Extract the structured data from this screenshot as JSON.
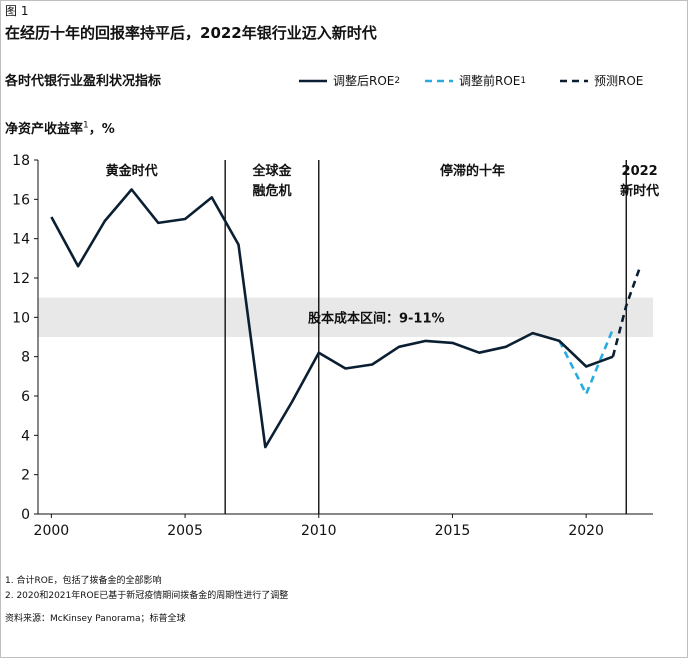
{
  "figure_label": "图 1",
  "title": "在经历十年的回报率持平后，2022年银行业迈入新时代",
  "subtitle": "各时代银行业盈利状况指标",
  "unit_label": "净资产收益率",
  "unit_label_sup": "1",
  "unit_label_suffix": "，%",
  "footnotes": [
    "1. 合计ROE，包括了拨备金的全部影响",
    "2. 2020和2021年ROE已基于新冠疫情期间拨备金的周期性进行了调整"
  ],
  "source": "资料来源：McKinsey Panorama；标普全球",
  "colors": {
    "adjusted": "#0b1f33",
    "pre_adjusted": "#29abe2",
    "forecast": "#0b1f33",
    "band": "#e8e8e8",
    "axis": "#111111"
  },
  "chart_data": {
    "type": "line",
    "xlim": [
      1999.5,
      2022.5
    ],
    "ylim": [
      0,
      18
    ],
    "x_ticks": [
      2000,
      2005,
      2010,
      2015,
      2020
    ],
    "y_ticks": [
      0,
      2,
      4,
      6,
      8,
      10,
      12,
      14,
      16,
      18
    ],
    "legend_position": "top-right",
    "series": [
      {
        "name": "调整后ROE",
        "name_sup": "2",
        "style": "solid",
        "x": [
          2000,
          2001,
          2002,
          2003,
          2004,
          2005,
          2006,
          2007,
          2008,
          2009,
          2010,
          2011,
          2012,
          2013,
          2014,
          2015,
          2016,
          2017,
          2018,
          2019,
          2020,
          2021
        ],
        "y": [
          15.1,
          12.6,
          14.9,
          16.5,
          14.8,
          15.0,
          16.1,
          13.7,
          3.4,
          5.7,
          8.2,
          7.4,
          7.6,
          8.5,
          8.8,
          8.7,
          8.2,
          8.5,
          9.2,
          8.8,
          7.5,
          8.0
        ]
      },
      {
        "name": "调整前ROE",
        "name_sup": "1",
        "style": "dashed",
        "x": [
          2019,
          2020,
          2021
        ],
        "y": [
          8.8,
          6.1,
          9.4
        ]
      },
      {
        "name": "预测ROE",
        "name_sup": "",
        "style": "dashed",
        "x": [
          2021,
          2021.5,
          2022
        ],
        "y": [
          8.0,
          10.6,
          12.5
        ]
      }
    ],
    "band": {
      "from": 9,
      "to": 11,
      "label": "股本成本区间：9-11%"
    },
    "dividers": [
      2006.5,
      2010,
      2021.5
    ],
    "eras": [
      {
        "lines": [
          "黄金时代"
        ],
        "center": 2003
      },
      {
        "lines": [
          "全球金",
          "融危机"
        ],
        "center": 2008.25
      },
      {
        "lines": [
          "停滞的十年"
        ],
        "center": 2015.75
      },
      {
        "lines": [
          "2022",
          "新时代"
        ],
        "center": 2022
      }
    ]
  }
}
